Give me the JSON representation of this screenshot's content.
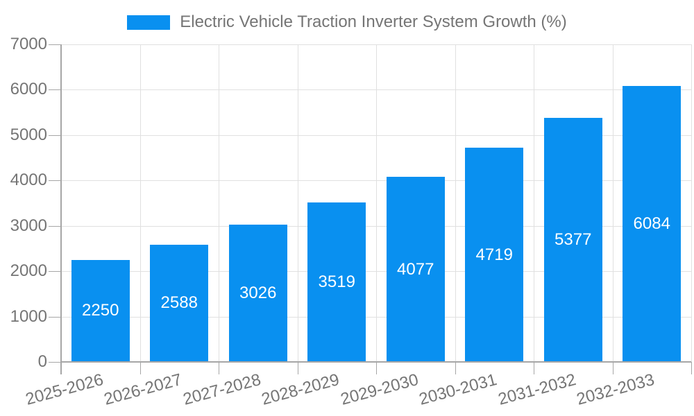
{
  "chart_data": {
    "type": "bar",
    "title": "Electric Vehicle Traction Inverter System Growth (%)",
    "categories": [
      "2025-2026",
      "2026-2027",
      "2027-2028",
      "2028-2029",
      "2029-2030",
      "2030-2031",
      "2031-2032",
      "2032-2033"
    ],
    "values": [
      2250,
      2588,
      3026,
      3519,
      4077,
      4719,
      5377,
      6084
    ],
    "xlabel": "",
    "ylabel": "",
    "ylim": [
      0,
      7000
    ],
    "ytick_interval": 1000,
    "ytick_labels": [
      "0",
      "1000",
      "2000",
      "3000",
      "4000",
      "5000",
      "6000",
      "7000"
    ],
    "grid": true,
    "legend_position": "top-center",
    "value_labels": "inside-center",
    "xtick_label_rotation_deg": -15,
    "colors": {
      "bar": "#0990F0",
      "grid": "#e0e0e0",
      "axis": "#a6a6a6",
      "text": "#757575",
      "value_label": "#ffffff",
      "background": "#ffffff"
    }
  }
}
